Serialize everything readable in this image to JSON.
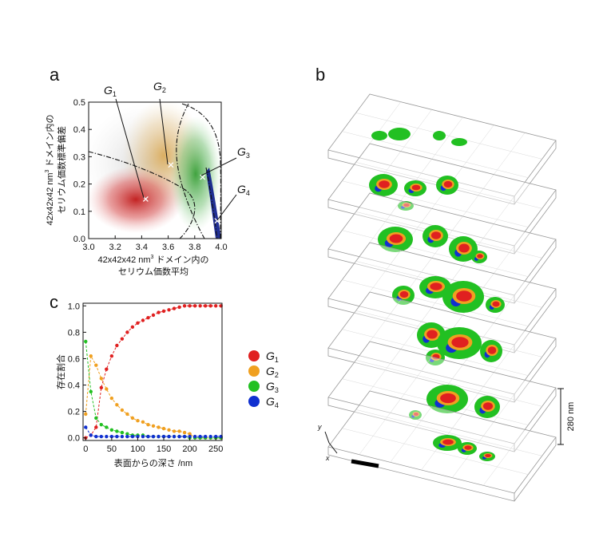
{
  "panels": {
    "a": "a",
    "b": "b",
    "c": "c"
  },
  "colors": {
    "G1": "#e02020",
    "G2": "#f0a020",
    "G3": "#22c022",
    "G4": "#1030d0"
  },
  "chart_data": [
    {
      "id": "a",
      "type": "scatter",
      "title": "",
      "xlabel_line1_prefix": "42x42x42 nm",
      "xlabel_line1_sup": "3",
      "xlabel_line1_suffix": " ドメイン内の",
      "xlabel_line2": "セリウム価数平均",
      "ylabel_line1_prefix": "42x42x42 nm",
      "ylabel_line1_sup": "3",
      "ylabel_line1_suffix": " ドメイン内の",
      "ylabel_line2": "セリウム価数標準偏差",
      "xlim": [
        3.0,
        4.0
      ],
      "ylim": [
        0.0,
        0.5
      ],
      "xticks": [
        "3.0",
        "3.2",
        "3.4",
        "3.6",
        "3.8",
        "4.0"
      ],
      "yticks": [
        "0.0",
        "0.1",
        "0.2",
        "0.3",
        "0.4",
        "0.5"
      ],
      "cluster_centers": [
        {
          "name": "G1",
          "x": 3.43,
          "y": 0.145
        },
        {
          "name": "G2",
          "x": 3.62,
          "y": 0.27
        },
        {
          "name": "G3",
          "x": 3.86,
          "y": 0.225
        },
        {
          "name": "G4",
          "x": 3.97,
          "y": 0.065
        }
      ],
      "cluster_labels": [
        {
          "name": "G1",
          "letter": "G",
          "sub": "1"
        },
        {
          "name": "G2",
          "letter": "G",
          "sub": "2"
        },
        {
          "name": "G3",
          "letter": "G",
          "sub": "3"
        },
        {
          "name": "G4",
          "letter": "G",
          "sub": "4"
        }
      ]
    },
    {
      "id": "c",
      "type": "line",
      "xlabel": "表面からの深さ /nm",
      "ylabel": "存在割合",
      "xlim": [
        -5,
        262
      ],
      "ylim": [
        -0.02,
        1.02
      ],
      "xticks": [
        "0",
        "50",
        "100",
        "150",
        "200",
        "250"
      ],
      "yticks": [
        "0.0",
        "0.2",
        "0.4",
        "0.6",
        "0.8",
        "1.0"
      ],
      "x": [
        0,
        10,
        20,
        30,
        40,
        50,
        60,
        70,
        80,
        90,
        100,
        110,
        120,
        130,
        140,
        150,
        160,
        170,
        180,
        190,
        200,
        210,
        220,
        230,
        240,
        250,
        260
      ],
      "series": [
        {
          "name": "G1",
          "values": [
            0.0,
            0.02,
            0.08,
            0.38,
            0.52,
            0.62,
            0.7,
            0.75,
            0.8,
            0.84,
            0.87,
            0.89,
            0.91,
            0.93,
            0.95,
            0.96,
            0.97,
            0.98,
            0.99,
            1.0,
            1.0,
            1.0,
            1.0,
            1.0,
            1.0,
            1.0,
            1.0
          ]
        },
        {
          "name": "G2",
          "values": [
            0.18,
            0.62,
            0.55,
            0.45,
            0.37,
            0.3,
            0.25,
            0.21,
            0.18,
            0.15,
            0.13,
            0.12,
            0.1,
            0.09,
            0.08,
            0.07,
            0.06,
            0.05,
            0.05,
            0.04,
            0.03,
            0.0,
            0.0,
            0.0,
            0.0,
            0.0,
            0.0
          ]
        },
        {
          "name": "G3",
          "values": [
            0.73,
            0.35,
            0.15,
            0.1,
            0.08,
            0.06,
            0.05,
            0.04,
            0.03,
            0.02,
            0.02,
            0.02,
            0.01,
            0.01,
            0.01,
            0.01,
            0.01,
            0.01,
            0.01,
            0.01,
            0.0,
            0.0,
            0.0,
            0.0,
            0.0,
            0.0,
            0.0
          ]
        },
        {
          "name": "G4",
          "values": [
            0.08,
            0.02,
            0.01,
            0.01,
            0.01,
            0.01,
            0.01,
            0.01,
            0.01,
            0.01,
            0.01,
            0.01,
            0.01,
            0.01,
            0.01,
            0.01,
            0.01,
            0.01,
            0.01,
            0.01,
            0.01,
            0.01,
            0.01,
            0.01,
            0.01,
            0.01,
            0.01
          ]
        }
      ],
      "legend": [
        {
          "name": "G1",
          "letter": "G",
          "sub": "1"
        },
        {
          "name": "G2",
          "letter": "G",
          "sub": "2"
        },
        {
          "name": "G3",
          "letter": "G",
          "sub": "3"
        },
        {
          "name": "G4",
          "letter": "G",
          "sub": "4"
        }
      ]
    },
    {
      "id": "b",
      "type": "other",
      "description_scale": "280 nm",
      "axis_y": "y",
      "axis_x": "x",
      "slices": 7
    }
  ]
}
